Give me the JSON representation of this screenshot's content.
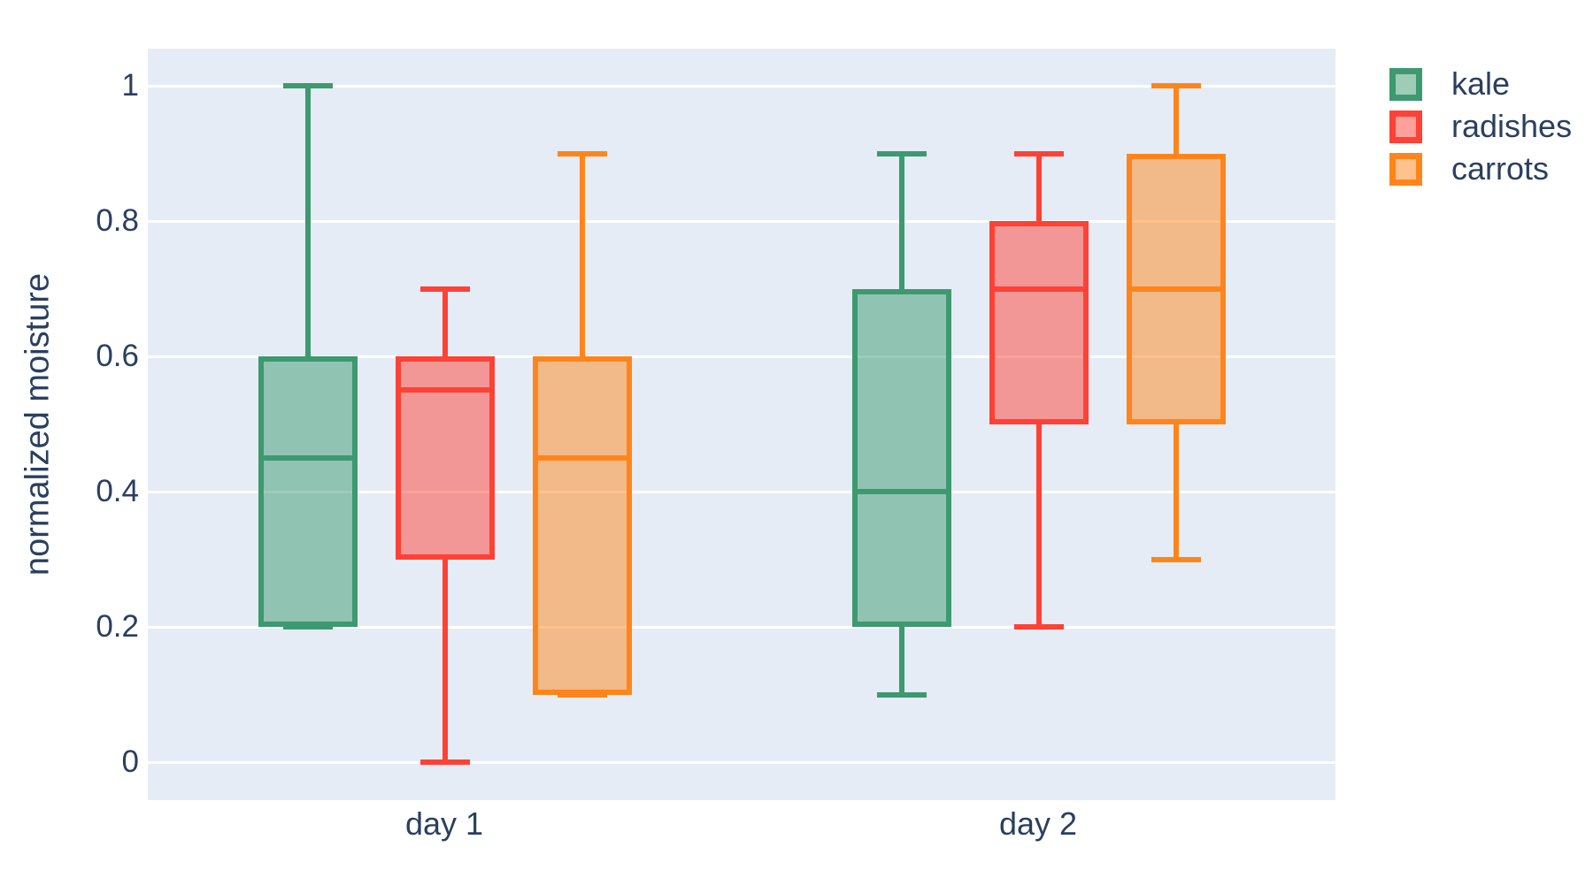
{
  "chart_data": {
    "type": "box",
    "title": "",
    "xlabel": "",
    "ylabel": "normalized moisture",
    "boxmode": "group",
    "grid": true,
    "legend_position": "top-right",
    "plot_bg_color": "#E5ECF6",
    "grid_color": "#FFFFFF",
    "text_color": "#2A3F5F",
    "categories": [
      "day 1",
      "day 2"
    ],
    "y_ticks": [
      {
        "label": "0",
        "value": 0
      },
      {
        "label": "0.2",
        "value": 0.2
      },
      {
        "label": "0.4",
        "value": 0.4
      },
      {
        "label": "0.6",
        "value": 0.6
      },
      {
        "label": "0.8",
        "value": 0.8
      },
      {
        "label": "1",
        "value": 1
      }
    ],
    "ylim": [
      -0.06,
      1.06
    ],
    "series": [
      {
        "name": "kale",
        "color": "#3D9970",
        "boxes": [
          {
            "category": "day 1",
            "min": 0.2,
            "q1": 0.2,
            "median": 0.45,
            "q3": 0.6,
            "max": 1.0
          },
          {
            "category": "day 2",
            "min": 0.1,
            "q1": 0.2,
            "median": 0.4,
            "q3": 0.7,
            "max": 0.9
          }
        ]
      },
      {
        "name": "radishes",
        "color": "#FF4136",
        "boxes": [
          {
            "category": "day 1",
            "min": 0.0,
            "q1": 0.3,
            "median": 0.55,
            "q3": 0.6,
            "max": 0.7
          },
          {
            "category": "day 2",
            "min": 0.2,
            "q1": 0.5,
            "median": 0.7,
            "q3": 0.8,
            "max": 0.9
          }
        ]
      },
      {
        "name": "carrots",
        "color": "#FF851B",
        "boxes": [
          {
            "category": "day 1",
            "min": 0.1,
            "q1": 0.1,
            "median": 0.45,
            "q3": 0.6,
            "max": 0.9
          },
          {
            "category": "day 2",
            "min": 0.3,
            "q1": 0.5,
            "median": 0.7,
            "q3": 0.9,
            "max": 1.0
          }
        ]
      }
    ]
  }
}
